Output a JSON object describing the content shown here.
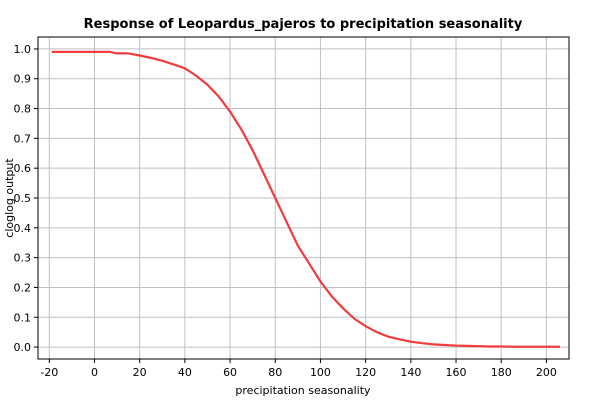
{
  "chart_data": {
    "type": "line",
    "title": "Response of Leopardus_pajeros to precipitation seasonality",
    "xlabel": "precipitation seasonality",
    "ylabel": "cloglog output",
    "xlim": [
      -25,
      210
    ],
    "ylim": [
      -0.04,
      1.04
    ],
    "x_ticks": [
      -20,
      0,
      20,
      40,
      60,
      80,
      100,
      120,
      140,
      160,
      180,
      200
    ],
    "y_ticks": [
      0.0,
      0.1,
      0.2,
      0.3,
      0.4,
      0.5,
      0.6,
      0.7,
      0.8,
      0.9,
      1.0
    ],
    "grid": true,
    "legend": "none",
    "series": [
      {
        "color": "#f03c3c",
        "x": [
          -19,
          0,
          7,
          10,
          15,
          20,
          25,
          30,
          35,
          40,
          45,
          50,
          55,
          60,
          65,
          70,
          75,
          80,
          85,
          90,
          95,
          100,
          105,
          110,
          115,
          120,
          125,
          130,
          135,
          140,
          145,
          150,
          155,
          160,
          165,
          170,
          175,
          180,
          185,
          190,
          195,
          200,
          206
        ],
        "y": [
          0.99,
          0.99,
          0.99,
          0.985,
          0.985,
          0.978,
          0.97,
          0.96,
          0.948,
          0.935,
          0.91,
          0.88,
          0.84,
          0.79,
          0.73,
          0.66,
          0.58,
          0.5,
          0.42,
          0.34,
          0.28,
          0.22,
          0.17,
          0.13,
          0.095,
          0.07,
          0.05,
          0.035,
          0.026,
          0.018,
          0.013,
          0.009,
          0.007,
          0.005,
          0.004,
          0.003,
          0.002,
          0.002,
          0.001,
          0.001,
          0.001,
          0.001,
          0.001
        ]
      }
    ]
  }
}
